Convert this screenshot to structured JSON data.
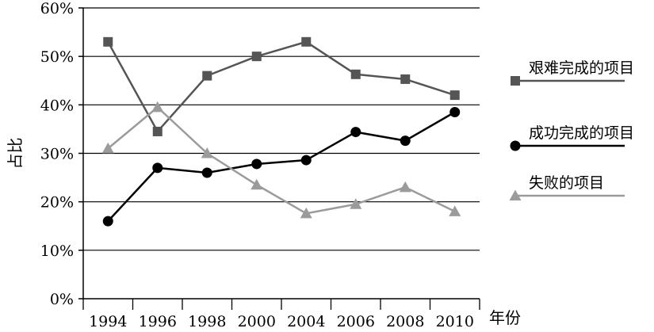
{
  "chart_data": {
    "type": "line",
    "xlabel": "年份",
    "ylabel": "占比",
    "categories": [
      "1994",
      "1996",
      "1998",
      "2000",
      "2004",
      "2006",
      "2008",
      "2010"
    ],
    "ylim": [
      0,
      60
    ],
    "yticks": [
      "0%",
      "10%",
      "20%",
      "30%",
      "40%",
      "50%",
      "60%"
    ],
    "grid": "horizontal",
    "legend_position": "right",
    "series": [
      {
        "name": "艰难完成的项目",
        "marker": "square",
        "color": "#555555",
        "values": [
          53,
          34.5,
          46,
          50,
          53,
          46.3,
          45.3,
          42
        ]
      },
      {
        "name": "成功完成的项目",
        "marker": "circle",
        "color": "#000000",
        "values": [
          16,
          27,
          26,
          27.8,
          28.6,
          34.4,
          32.6,
          38.5
        ]
      },
      {
        "name": "失败的项目",
        "marker": "triangle",
        "color": "#9b9b9b",
        "values": [
          31,
          39.5,
          30,
          23.5,
          17.6,
          19.5,
          23,
          18
        ]
      }
    ]
  }
}
